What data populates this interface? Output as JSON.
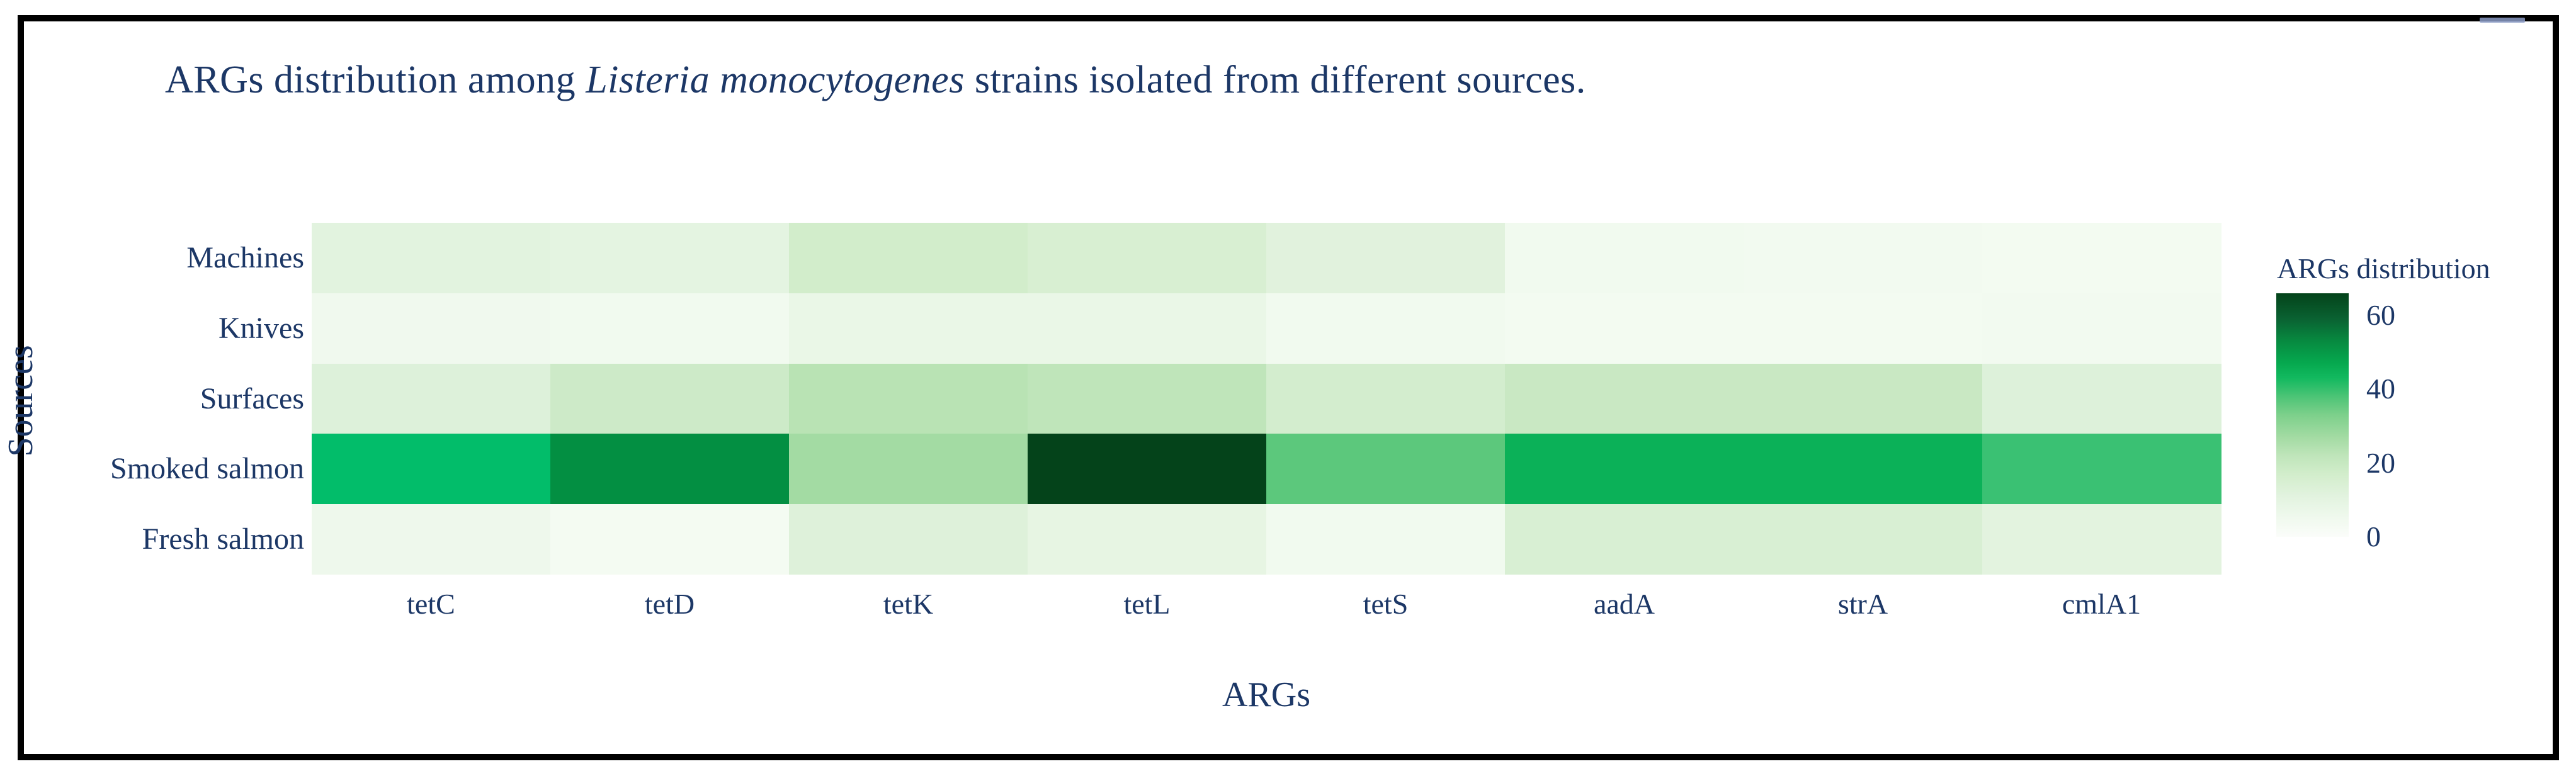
{
  "figure": {
    "title_parts": {
      "pre": "ARGs distribution among ",
      "species": "Listeria monocytogenes",
      "post": " strains isolated from different sources."
    }
  },
  "chart_data": {
    "type": "heatmap",
    "title": "ARGs distribution among Listeria monocytogenes strains isolated from different sources.",
    "xlabel": "ARGs",
    "ylabel": "Sources",
    "x_categories": [
      "tetC",
      "tetD",
      "tetK",
      "tetL",
      "tetS",
      "aadA",
      "strA",
      "cmlA1"
    ],
    "y_categories": [
      "Machines",
      "Knives",
      "Surfaces",
      "Smoked salmon",
      "Fresh salmon"
    ],
    "values": [
      [
        11,
        10,
        15,
        13,
        11,
        4,
        4,
        3
      ],
      [
        5,
        4,
        7,
        7,
        4,
        3,
        3,
        4
      ],
      [
        12,
        18,
        23,
        22,
        16,
        19,
        19,
        12
      ],
      [
        44,
        52,
        27,
        66,
        36,
        46,
        46,
        41
      ],
      [
        5,
        2,
        12,
        9,
        4,
        13,
        13,
        10
      ]
    ],
    "cell_colors": [
      [
        "#e2f3df",
        "#e4f4e1",
        "#d2edcb",
        "#d8efd2",
        "#e1f2dd",
        "#f1faef",
        "#f2faf0",
        "#f3fbf1"
      ],
      [
        "#f0f9ee",
        "#f1faef",
        "#eaf7e7",
        "#eaf7e7",
        "#f1faef",
        "#f3fbf1",
        "#f3fbf1",
        "#f2faf0"
      ],
      [
        "#ddf1da",
        "#cdeac8",
        "#b9e3b4",
        "#bfe5ba",
        "#d3edce",
        "#c9e8c3",
        "#c9e8c3",
        "#ddf1da"
      ],
      [
        "#02bd6a",
        "#038f42",
        "#a3dba3",
        "#04431a",
        "#5cc87c",
        "#0bb158",
        "#0bb158",
        "#3ac173"
      ],
      [
        "#eef8ec",
        "#f4fbf2",
        "#def1da",
        "#e7f5e3",
        "#f1faef",
        "#d8efd3",
        "#d8efd3",
        "#e3f3df"
      ]
    ],
    "colorbar": {
      "title": "ARGs distribution",
      "ticks": [
        0,
        20,
        40,
        60
      ],
      "range": [
        0,
        66
      ],
      "gradient_stops": [
        {
          "v": 66,
          "color": "#04431a"
        },
        {
          "v": 59,
          "color": "#0a6232"
        },
        {
          "v": 53,
          "color": "#078a40"
        },
        {
          "v": 47,
          "color": "#06a94f"
        },
        {
          "v": 43,
          "color": "#12b95f"
        },
        {
          "v": 38,
          "color": "#4cc476"
        },
        {
          "v": 33,
          "color": "#7dd08b"
        },
        {
          "v": 27,
          "color": "#a3dba3"
        },
        {
          "v": 22,
          "color": "#bfe5ba"
        },
        {
          "v": 17,
          "color": "#d2edcb"
        },
        {
          "v": 11,
          "color": "#e2f3df"
        },
        {
          "v": 5,
          "color": "#f0f9ee"
        },
        {
          "v": 0,
          "color": "#fbfdfa"
        }
      ]
    },
    "text_color": "#1c3766",
    "grid": false,
    "legend_position": "right"
  }
}
